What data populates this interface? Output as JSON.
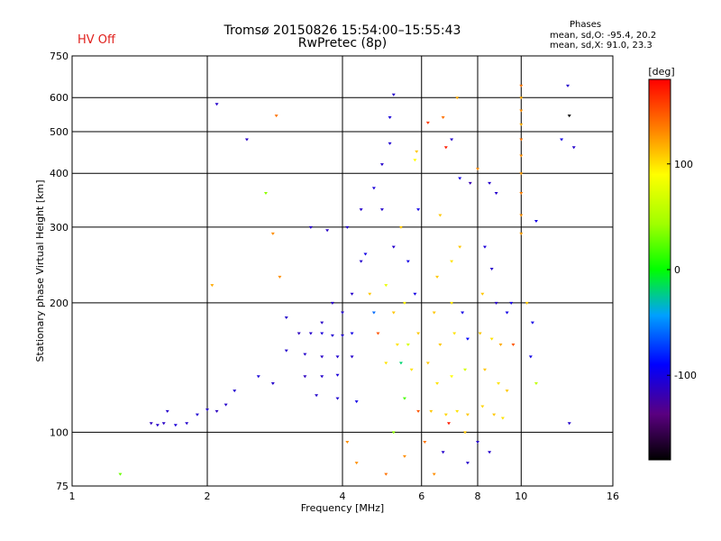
{
  "header": {
    "title_line1": "Tromsø 20150826 15:54:00–15:55:43",
    "title_line2": "RwPretec (8p)",
    "hv_status": "HV Off",
    "stats_title": "Phases",
    "stats_o": "mean, sd,O: -95.4, 20.2",
    "stats_x": "mean, sd,X:  91.0, 23.3"
  },
  "colors": {
    "hv_status": "#e0201c",
    "grid": "#000000"
  },
  "colorbar": {
    "label": "[deg]",
    "ticks": [
      "100",
      "0",
      "-100"
    ],
    "tick_values": [
      100,
      0,
      -100
    ],
    "range": [
      -180,
      180
    ]
  },
  "chart_data": {
    "type": "scatter",
    "xlabel": "Frequency [MHz]",
    "ylabel": "Stationary phase Virtual Height [km]",
    "x_scale": "log",
    "y_scale": "log",
    "xlim": [
      1,
      16
    ],
    "ylim": [
      75,
      750
    ],
    "x_ticks": [
      1,
      2,
      4,
      6,
      8,
      10,
      16
    ],
    "x_tick_labels": [
      "1",
      "2",
      "4",
      "6",
      "8",
      "10",
      "16"
    ],
    "y_ticks": [
      75,
      100,
      200,
      300,
      400,
      500,
      600,
      750
    ],
    "y_tick_labels": [
      "75",
      "100",
      "200",
      "300",
      "400",
      "500",
      "600",
      "750"
    ],
    "grid": true,
    "color_variable": "phase [deg]",
    "series": [
      {
        "points": [
          {
            "x": 1.28,
            "y": 80,
            "phase": 30
          },
          {
            "x": 1.5,
            "y": 105,
            "phase": -115
          },
          {
            "x": 1.55,
            "y": 104,
            "phase": -110
          },
          {
            "x": 1.6,
            "y": 105,
            "phase": -112
          },
          {
            "x": 1.63,
            "y": 112,
            "phase": -110
          },
          {
            "x": 1.7,
            "y": 104,
            "phase": -105
          },
          {
            "x": 1.8,
            "y": 105,
            "phase": -110
          },
          {
            "x": 1.9,
            "y": 110,
            "phase": -108
          },
          {
            "x": 2.0,
            "y": 113,
            "phase": -110
          },
          {
            "x": 2.1,
            "y": 112,
            "phase": -115
          },
          {
            "x": 2.2,
            "y": 116,
            "phase": -110
          },
          {
            "x": 2.05,
            "y": 220,
            "phase": 120
          },
          {
            "x": 2.1,
            "y": 580,
            "phase": -110
          },
          {
            "x": 2.45,
            "y": 480,
            "phase": -112
          },
          {
            "x": 2.3,
            "y": 125,
            "phase": -108
          },
          {
            "x": 2.6,
            "y": 135,
            "phase": -105
          },
          {
            "x": 2.7,
            "y": 360,
            "phase": 40
          },
          {
            "x": 2.8,
            "y": 290,
            "phase": 130
          },
          {
            "x": 2.85,
            "y": 545,
            "phase": 140
          },
          {
            "x": 2.8,
            "y": 130,
            "phase": -110
          },
          {
            "x": 2.9,
            "y": 230,
            "phase": 130
          },
          {
            "x": 3.0,
            "y": 185,
            "phase": -110
          },
          {
            "x": 3.2,
            "y": 170,
            "phase": -115
          },
          {
            "x": 3.4,
            "y": 170,
            "phase": -110
          },
          {
            "x": 3.6,
            "y": 170,
            "phase": -105
          },
          {
            "x": 3.8,
            "y": 168,
            "phase": -108
          },
          {
            "x": 4.0,
            "y": 168,
            "phase": -110
          },
          {
            "x": 4.2,
            "y": 170,
            "phase": -100
          },
          {
            "x": 3.3,
            "y": 152,
            "phase": -110
          },
          {
            "x": 3.6,
            "y": 150,
            "phase": -112
          },
          {
            "x": 3.9,
            "y": 150,
            "phase": -108
          },
          {
            "x": 4.2,
            "y": 150,
            "phase": -110
          },
          {
            "x": 3.3,
            "y": 135,
            "phase": -115
          },
          {
            "x": 3.6,
            "y": 135,
            "phase": -110
          },
          {
            "x": 3.9,
            "y": 136,
            "phase": -105
          },
          {
            "x": 3.5,
            "y": 122,
            "phase": -110
          },
          {
            "x": 3.9,
            "y": 120,
            "phase": -108
          },
          {
            "x": 4.3,
            "y": 118,
            "phase": -100
          },
          {
            "x": 3.4,
            "y": 300,
            "phase": -110
          },
          {
            "x": 3.7,
            "y": 295,
            "phase": -112
          },
          {
            "x": 4.1,
            "y": 300,
            "phase": -108
          },
          {
            "x": 4.4,
            "y": 330,
            "phase": -110
          },
          {
            "x": 4.7,
            "y": 370,
            "phase": -105
          },
          {
            "x": 4.9,
            "y": 420,
            "phase": -110
          },
          {
            "x": 5.1,
            "y": 470,
            "phase": -108
          },
          {
            "x": 5.2,
            "y": 610,
            "phase": -110
          },
          {
            "x": 5.1,
            "y": 540,
            "phase": -105
          },
          {
            "x": 4.5,
            "y": 260,
            "phase": -100
          },
          {
            "x": 5.2,
            "y": 270,
            "phase": -110
          },
          {
            "x": 4.2,
            "y": 210,
            "phase": -110
          },
          {
            "x": 4.6,
            "y": 210,
            "phase": 110
          },
          {
            "x": 5.0,
            "y": 220,
            "phase": 80
          },
          {
            "x": 4.7,
            "y": 190,
            "phase": -60
          },
          {
            "x": 5.2,
            "y": 190,
            "phase": 110
          },
          {
            "x": 5.5,
            "y": 200,
            "phase": 95
          },
          {
            "x": 5.8,
            "y": 210,
            "phase": -100
          },
          {
            "x": 4.8,
            "y": 170,
            "phase": 150
          },
          {
            "x": 5.3,
            "y": 160,
            "phase": 100
          },
          {
            "x": 5.6,
            "y": 160,
            "phase": 70
          },
          {
            "x": 5.9,
            "y": 170,
            "phase": 110
          },
          {
            "x": 5.0,
            "y": 145,
            "phase": 100
          },
          {
            "x": 5.4,
            "y": 145,
            "phase": -20
          },
          {
            "x": 5.7,
            "y": 140,
            "phase": 100
          },
          {
            "x": 6.2,
            "y": 145,
            "phase": 110
          },
          {
            "x": 5.5,
            "y": 120,
            "phase": 20
          },
          {
            "x": 5.9,
            "y": 112,
            "phase": 150
          },
          {
            "x": 6.3,
            "y": 112,
            "phase": 110
          },
          {
            "x": 6.8,
            "y": 110,
            "phase": 105
          },
          {
            "x": 7.2,
            "y": 112,
            "phase": 100
          },
          {
            "x": 7.6,
            "y": 110,
            "phase": 110
          },
          {
            "x": 6.5,
            "y": 130,
            "phase": 100
          },
          {
            "x": 7.0,
            "y": 135,
            "phase": 90
          },
          {
            "x": 7.5,
            "y": 140,
            "phase": 70
          },
          {
            "x": 6.6,
            "y": 160,
            "phase": 110
          },
          {
            "x": 7.1,
            "y": 170,
            "phase": 100
          },
          {
            "x": 7.6,
            "y": 165,
            "phase": -90
          },
          {
            "x": 6.4,
            "y": 190,
            "phase": 110
          },
          {
            "x": 7.0,
            "y": 200,
            "phase": 100
          },
          {
            "x": 7.4,
            "y": 190,
            "phase": -100
          },
          {
            "x": 6.5,
            "y": 230,
            "phase": 110
          },
          {
            "x": 7.0,
            "y": 250,
            "phase": 100
          },
          {
            "x": 7.3,
            "y": 270,
            "phase": 110
          },
          {
            "x": 6.6,
            "y": 320,
            "phase": 110
          },
          {
            "x": 5.8,
            "y": 430,
            "phase": 90
          },
          {
            "x": 5.85,
            "y": 450,
            "phase": 110
          },
          {
            "x": 6.8,
            "y": 460,
            "phase": 170
          },
          {
            "x": 6.2,
            "y": 525,
            "phase": 160
          },
          {
            "x": 6.7,
            "y": 540,
            "phase": 140
          },
          {
            "x": 7.2,
            "y": 600,
            "phase": 120
          },
          {
            "x": 7.3,
            "y": 390,
            "phase": -100
          },
          {
            "x": 7.0,
            "y": 480,
            "phase": -110
          },
          {
            "x": 7.7,
            "y": 380,
            "phase": -120
          },
          {
            "x": 8.0,
            "y": 410,
            "phase": 130
          },
          {
            "x": 8.5,
            "y": 380,
            "phase": -110
          },
          {
            "x": 8.8,
            "y": 360,
            "phase": -110
          },
          {
            "x": 8.3,
            "y": 270,
            "phase": -105
          },
          {
            "x": 8.6,
            "y": 240,
            "phase": -110
          },
          {
            "x": 8.2,
            "y": 210,
            "phase": 110
          },
          {
            "x": 8.8,
            "y": 200,
            "phase": -110
          },
          {
            "x": 9.3,
            "y": 190,
            "phase": -100
          },
          {
            "x": 8.1,
            "y": 170,
            "phase": 110
          },
          {
            "x": 8.6,
            "y": 165,
            "phase": 100
          },
          {
            "x": 9.0,
            "y": 160,
            "phase": 120
          },
          {
            "x": 8.3,
            "y": 140,
            "phase": 110
          },
          {
            "x": 8.9,
            "y": 130,
            "phase": 100
          },
          {
            "x": 9.3,
            "y": 125,
            "phase": 110
          },
          {
            "x": 8.2,
            "y": 115,
            "phase": 105
          },
          {
            "x": 8.7,
            "y": 110,
            "phase": 110
          },
          {
            "x": 9.1,
            "y": 108,
            "phase": 100
          },
          {
            "x": 8.0,
            "y": 95,
            "phase": -110
          },
          {
            "x": 8.5,
            "y": 90,
            "phase": -110
          },
          {
            "x": 9.5,
            "y": 200,
            "phase": -100
          },
          {
            "x": 9.6,
            "y": 160,
            "phase": 150
          },
          {
            "x": 10.0,
            "y": 600,
            "phase": 120
          },
          {
            "x": 10.0,
            "y": 560,
            "phase": 130
          },
          {
            "x": 10.0,
            "y": 520,
            "phase": 120
          },
          {
            "x": 10.0,
            "y": 480,
            "phase": 140
          },
          {
            "x": 10.0,
            "y": 440,
            "phase": 130
          },
          {
            "x": 10.0,
            "y": 400,
            "phase": 125
          },
          {
            "x": 10.0,
            "y": 360,
            "phase": 135
          },
          {
            "x": 10.0,
            "y": 320,
            "phase": 130
          },
          {
            "x": 10.0,
            "y": 290,
            "phase": 125
          },
          {
            "x": 10.0,
            "y": 640,
            "phase": 140
          },
          {
            "x": 10.8,
            "y": 310,
            "phase": -100
          },
          {
            "x": 10.5,
            "y": 150,
            "phase": -100
          },
          {
            "x": 10.8,
            "y": 130,
            "phase": 60
          },
          {
            "x": 10.6,
            "y": 180,
            "phase": -100
          },
          {
            "x": 10.3,
            "y": 200,
            "phase": 110
          },
          {
            "x": 12.3,
            "y": 480,
            "phase": -100
          },
          {
            "x": 12.7,
            "y": 640,
            "phase": -110
          },
          {
            "x": 12.8,
            "y": 545,
            "phase": -180
          },
          {
            "x": 13.1,
            "y": 460,
            "phase": -110
          },
          {
            "x": 12.8,
            "y": 105,
            "phase": -110
          },
          {
            "x": 5.0,
            "y": 80,
            "phase": 140
          },
          {
            "x": 4.3,
            "y": 85,
            "phase": 130
          },
          {
            "x": 5.5,
            "y": 88,
            "phase": 130
          },
          {
            "x": 6.1,
            "y": 95,
            "phase": 140
          },
          {
            "x": 6.4,
            "y": 80,
            "phase": 130
          },
          {
            "x": 6.7,
            "y": 90,
            "phase": -110
          },
          {
            "x": 7.6,
            "y": 85,
            "phase": -110
          },
          {
            "x": 5.2,
            "y": 100,
            "phase": 40
          },
          {
            "x": 4.1,
            "y": 95,
            "phase": 130
          },
          {
            "x": 6.9,
            "y": 105,
            "phase": 170
          },
          {
            "x": 7.5,
            "y": 100,
            "phase": 110
          },
          {
            "x": 5.6,
            "y": 250,
            "phase": -100
          },
          {
            "x": 5.4,
            "y": 300,
            "phase": 110
          },
          {
            "x": 5.9,
            "y": 330,
            "phase": -100
          },
          {
            "x": 4.9,
            "y": 330,
            "phase": -110
          },
          {
            "x": 4.4,
            "y": 250,
            "phase": -110
          },
          {
            "x": 4.0,
            "y": 190,
            "phase": -110
          },
          {
            "x": 3.8,
            "y": 200,
            "phase": -110
          },
          {
            "x": 3.6,
            "y": 180,
            "phase": -112
          },
          {
            "x": 3.0,
            "y": 155,
            "phase": -110
          }
        ]
      }
    ]
  }
}
